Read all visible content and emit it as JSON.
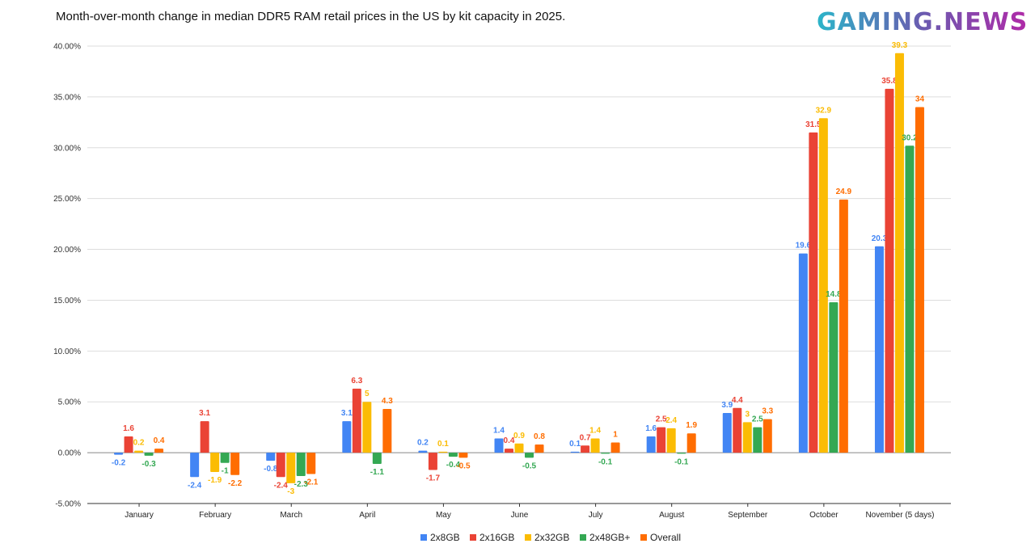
{
  "chart_data": {
    "type": "bar",
    "title": "Month-over-month change in median DDR5 RAM retail prices in the US by kit capacity in 2025.",
    "logo": "GAMING.NEWS",
    "categories": [
      "January",
      "February",
      "March",
      "April",
      "May",
      "June",
      "July",
      "August",
      "September",
      "October",
      "November (5 days)"
    ],
    "series": [
      {
        "name": "2x8GB",
        "color": "#4285f4",
        "values": [
          -0.2,
          -2.4,
          -0.8,
          3.1,
          0.2,
          1.4,
          0.1,
          1.6,
          3.9,
          19.6,
          20.3
        ]
      },
      {
        "name": "2x16GB",
        "color": "#ea4335",
        "values": [
          1.6,
          3.1,
          -2.4,
          6.3,
          -1.7,
          0.4,
          0.7,
          2.5,
          4.4,
          31.5,
          35.8
        ]
      },
      {
        "name": "2x32GB",
        "color": "#fbbc04",
        "values": [
          0.2,
          -1.9,
          -3,
          5,
          0.1,
          0.9,
          1.4,
          2.4,
          3,
          32.9,
          39.3
        ]
      },
      {
        "name": "2x48GB+",
        "color": "#34a853",
        "values": [
          -0.3,
          -1,
          -2.3,
          -1.1,
          -0.4,
          -0.5,
          -0.1,
          -0.1,
          2.5,
          14.8,
          30.2
        ]
      },
      {
        "name": "Overall",
        "color": "#ff6d01",
        "values": [
          0.4,
          -2.2,
          -2.1,
          4.3,
          -0.5,
          0.8,
          1,
          1.9,
          3.3,
          24.9,
          34
        ]
      }
    ],
    "yticks": [
      "-5.00%",
      "0.00%",
      "5.00%",
      "10.00%",
      "15.00%",
      "20.00%",
      "25.00%",
      "30.00%",
      "35.00%",
      "40.00%"
    ],
    "ylim": [
      -5,
      40
    ],
    "grid": true,
    "legend": "bottom"
  }
}
